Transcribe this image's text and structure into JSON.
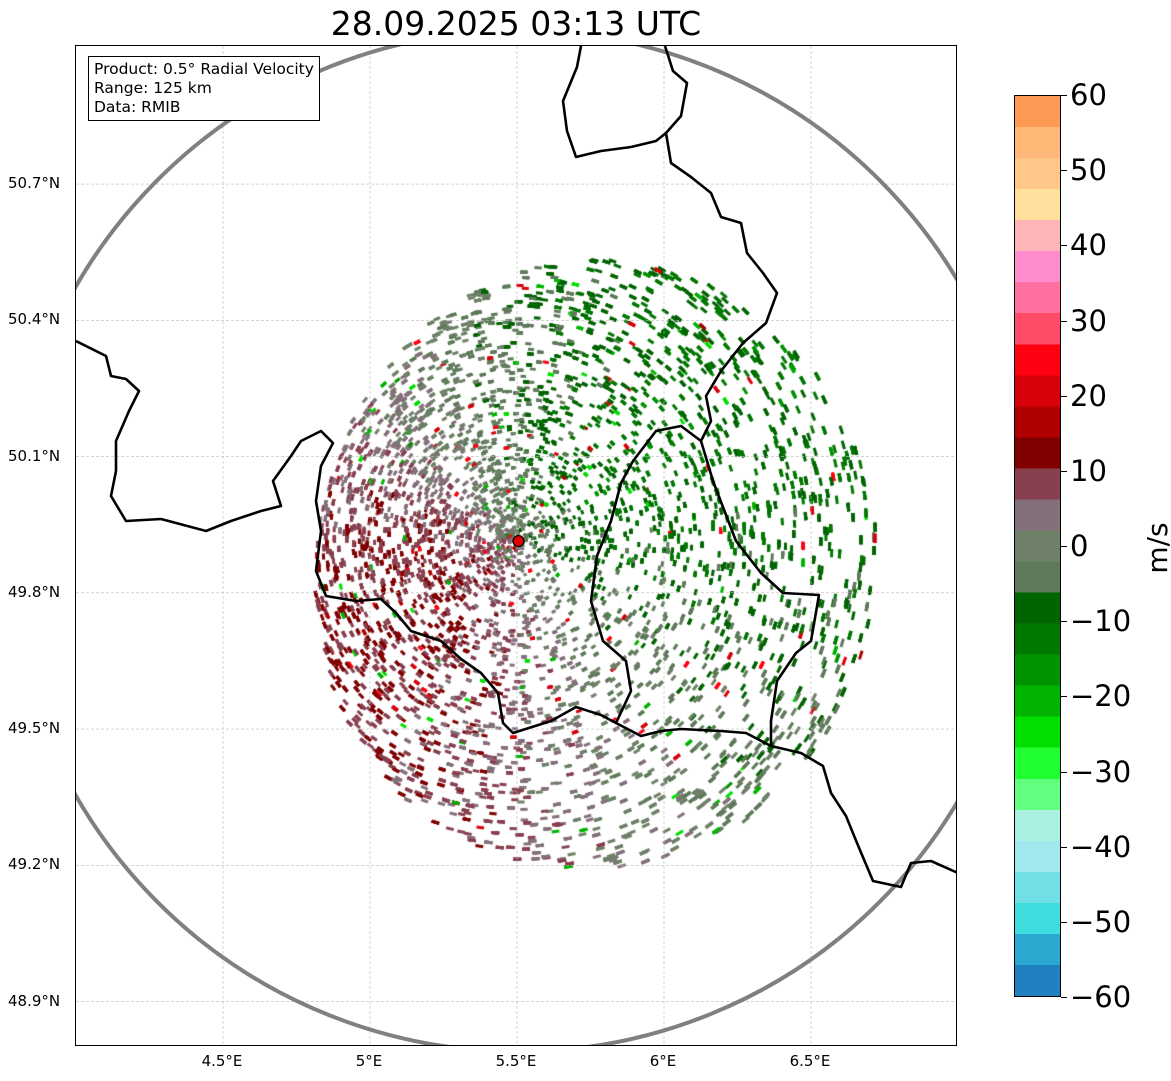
{
  "title": "28.09.2025 03:13 UTC",
  "info_box": {
    "product": "Product: 0.5° Radial Velocity",
    "range": "Range: 125 km",
    "data": "Data: RMIB"
  },
  "map": {
    "lon_range": [
      4.0,
      7.0
    ],
    "lat_range": [
      48.8,
      51.004
    ],
    "radar_site": {
      "lon": 5.505,
      "lat": 49.914,
      "marker_color": "#e00000"
    },
    "range_km": 125,
    "range_ring_color": "#808080",
    "x_ticks": [
      {
        "value": 4.5,
        "label": "4.5°E"
      },
      {
        "value": 5.0,
        "label": "5°E"
      },
      {
        "value": 5.5,
        "label": "5.5°E"
      },
      {
        "value": 6.0,
        "label": "6°E"
      },
      {
        "value": 6.5,
        "label": "6.5°E"
      }
    ],
    "y_ticks": [
      {
        "value": 50.7,
        "label": "50.7°N"
      },
      {
        "value": 50.4,
        "label": "50.4°N"
      },
      {
        "value": 50.1,
        "label": "50.1°N"
      },
      {
        "value": 49.8,
        "label": "49.8°N"
      },
      {
        "value": 49.5,
        "label": "49.5°N"
      },
      {
        "value": 49.2,
        "label": "49.2°N"
      },
      {
        "value": 48.9,
        "label": "48.9°N"
      }
    ]
  },
  "colorbar": {
    "unit": "m/s",
    "range": [
      -60,
      60
    ],
    "ticks": [
      "60",
      "50",
      "40",
      "30",
      "20",
      "10",
      "0",
      "−10",
      "−20",
      "−30",
      "−40",
      "−50",
      "−60"
    ],
    "tick_values": [
      60,
      50,
      40,
      30,
      20,
      10,
      0,
      -10,
      -20,
      -30,
      -40,
      -50,
      -60
    ],
    "colors_top_to_bottom": [
      "#ff9a55",
      "#ffb878",
      "#ffc888",
      "#ffe09c",
      "#ffb4b8",
      "#ff8ccc",
      "#ff70a0",
      "#ff4a68",
      "#ff0010",
      "#d8000a",
      "#b00000",
      "#800000",
      "#884050",
      "#84707a",
      "#6e8068",
      "#5e7a5a",
      "#006400",
      "#007800",
      "#009400",
      "#00b400",
      "#00e000",
      "#20ff30",
      "#60ff80",
      "#a8f0e0",
      "#a0e8ee",
      "#70e0e6",
      "#40dde0",
      "#2aa8d0",
      "#2080c0"
    ]
  }
}
